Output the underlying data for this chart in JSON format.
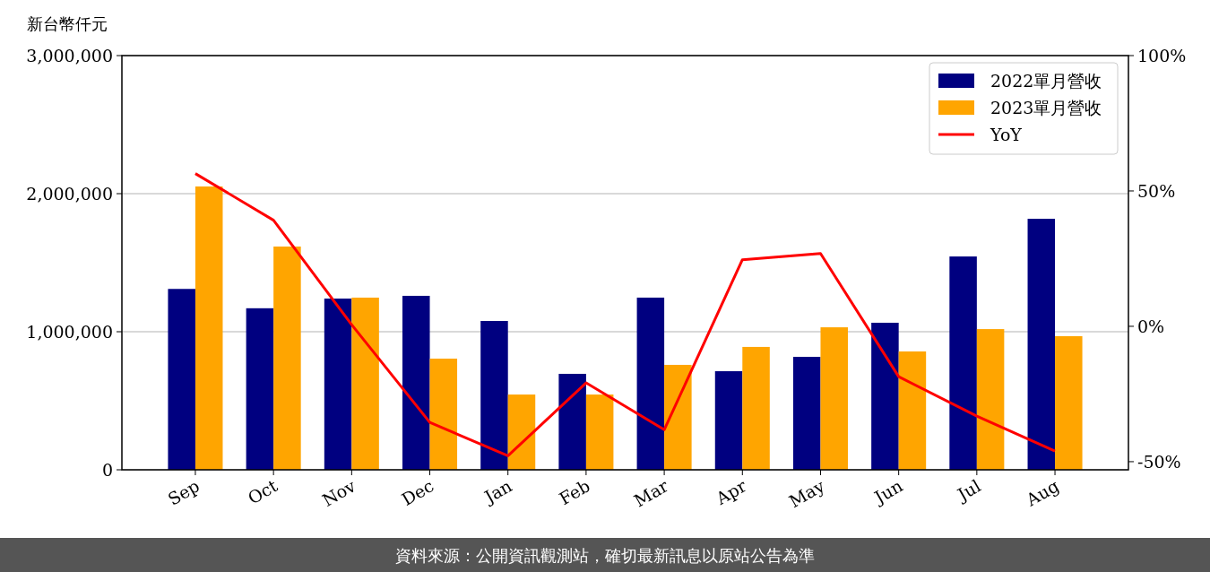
{
  "chart_data": {
    "type": "bar",
    "ylabel": "新台幣仟元",
    "categories": [
      "Sep",
      "Oct",
      "Nov",
      "Dec",
      "Jan",
      "Feb",
      "Mar",
      "Apr",
      "May",
      "Jun",
      "Jul",
      "Aug"
    ],
    "series": [
      {
        "name": "2022單月營收",
        "color": "#000080",
        "values": [
          1310000,
          1170000,
          1240000,
          1260000,
          1078000,
          695000,
          1247000,
          714000,
          818000,
          1065000,
          1545000,
          1818000
        ]
      },
      {
        "name": "2023單月營收",
        "color": "#ffa500",
        "values": [
          2052000,
          1617000,
          1247000,
          805000,
          545000,
          545000,
          760000,
          890000,
          1032000,
          857000,
          1019000,
          968000
        ]
      },
      {
        "name": "YoY",
        "type": "line",
        "axis": "y2",
        "color": "#ff0000",
        "values": [
          56.4,
          39.2,
          0.6,
          -35.5,
          -47.8,
          -20.9,
          -38.2,
          24.6,
          26.9,
          -18.6,
          -33.2,
          -46.1
        ]
      }
    ],
    "ylim": [
      0,
      3000000
    ],
    "yticks": [
      {
        "value": 0,
        "label": "0"
      },
      {
        "value": 1000000,
        "label": "1,000,000"
      },
      {
        "value": 2000000,
        "label": "2,000,000"
      },
      {
        "value": 3000000,
        "label": "3,000,000"
      }
    ],
    "y2lim": [
      -53,
      100
    ],
    "y2ticks": [
      {
        "value": -50,
        "label": "-50%"
      },
      {
        "value": 0,
        "label": "0%"
      },
      {
        "value": 50,
        "label": "50%"
      },
      {
        "value": 100,
        "label": "100%"
      }
    ],
    "grid": "y",
    "legend": "top right",
    "annotations": [
      "資料來源：公開資訊觀測站，確切最新訊息以原站公告為準"
    ]
  }
}
